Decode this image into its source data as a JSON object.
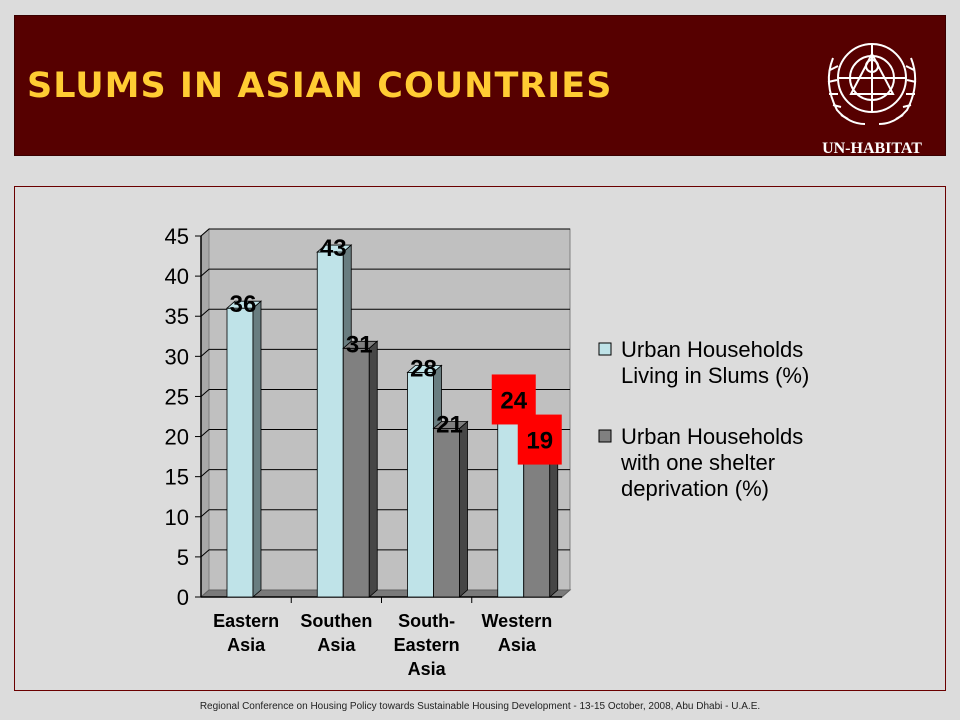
{
  "header": {
    "title": "SLUMS IN ASIAN COUNTRIES",
    "logo_text": "UN-HABITAT",
    "background_color": "#560000",
    "title_color": "#ffcc33"
  },
  "footer": {
    "text": "Regional Conference on Housing Policy towards Sustainable Housing Development - 13-15 October, 2008, Abu Dhabi - U.A.E."
  },
  "chart_data": {
    "type": "bar",
    "style": "3d-clustered",
    "categories": [
      [
        "Eastern",
        "Asia"
      ],
      [
        "Southen",
        "Asia"
      ],
      [
        "South-",
        "Eastern",
        "Asia"
      ],
      [
        "Western",
        "Asia"
      ]
    ],
    "series": [
      {
        "name": [
          "Urban Households",
          "Living in Slums (%)"
        ],
        "values": [
          36,
          43,
          28,
          24
        ],
        "color": "#bfe3e8"
      },
      {
        "name": [
          "Urban Households",
          "with one shelter",
          "deprivation (%)"
        ],
        "values": [
          null,
          31,
          21,
          19
        ],
        "color": "#808080"
      }
    ],
    "data_labels": [
      [
        "36",
        "43",
        "28",
        "24"
      ],
      [
        "",
        "31",
        "21",
        "19"
      ]
    ],
    "highlighted_labels": [
      [
        3,
        0
      ],
      [
        3,
        1
      ]
    ],
    "highlight_color": "#ff0000",
    "ylim": [
      0,
      45
    ],
    "yticks": [
      "0",
      "5",
      "10",
      "15",
      "20",
      "25",
      "30",
      "35",
      "40",
      "45"
    ],
    "grid": true,
    "legend_position": "right",
    "plot_background": "#c0c0c0"
  }
}
